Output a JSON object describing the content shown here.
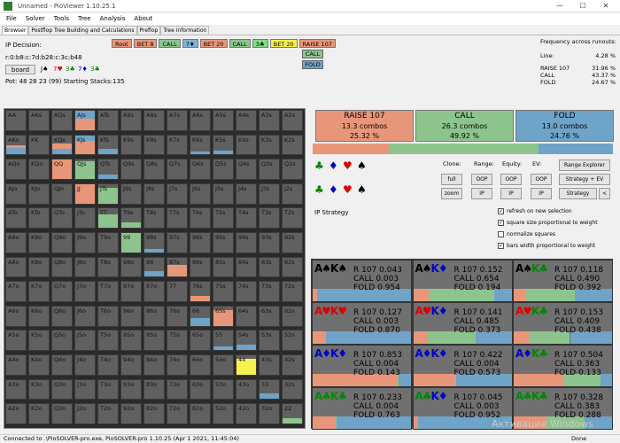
{
  "window": {
    "title": "Unnamed - PioViewer 1.10.25.1",
    "minimize": "—",
    "maximize": "☐",
    "close": "✕"
  },
  "menu": [
    "File",
    "Solver",
    "Tools",
    "Tree",
    "Analysis",
    "About"
  ],
  "tabs": [
    "Browser",
    "Postflop Tree Building and Calculations",
    "Preflop",
    "Tree information"
  ],
  "left_panel": {
    "ip_decision": "IP Decision:",
    "board_text": "r:0:b8:c:7d:b28:c:3c:b48",
    "board_button": "board",
    "board_cards": [
      {
        "t": "J♠",
        "c": "#000"
      },
      {
        "t": "7♥",
        "c": "#d00"
      },
      {
        "t": "3♣",
        "c": "#080"
      },
      {
        "t": "7♦",
        "c": "#00c"
      },
      {
        "t": "3♣",
        "c": "#080"
      }
    ],
    "pot": "Pot: 48 28 23 (99) Starting Stacks:135"
  },
  "breadcrumbs": [
    {
      "t": "Root",
      "c": "#e8967a"
    },
    {
      "t": "BET 8",
      "c": "#e8967a"
    },
    {
      "t": "CALL",
      "c": "#8dc48d"
    },
    {
      "t": "7♦",
      "c": "#7fb3d5"
    },
    {
      "t": "BET 20",
      "c": "#e8967a"
    },
    {
      "t": "CALL",
      "c": "#8dc48d"
    },
    {
      "t": "3♣",
      "c": "#7fe07f"
    },
    {
      "t": "BET 20",
      "c": "#f5f250"
    },
    {
      "t": "RAISE 107",
      "c": "#e8967a"
    }
  ],
  "options": {
    "call": "CALL",
    "fold": "FOLD"
  },
  "frequency": {
    "title": "Frequency across runouts:",
    "line_label": "Line:",
    "line_value": "4.28 %",
    "rows": [
      {
        "l": "RAISE 107",
        "v": "31.96 %"
      },
      {
        "l": "CALL",
        "v": "43.37 %"
      },
      {
        "l": "FOLD",
        "v": "24.67 %"
      }
    ]
  },
  "grid": [
    [
      "AA",
      "AKs",
      "AQs",
      "AJs",
      "ATs",
      "A9s",
      "A8s",
      "A7s",
      "A6s",
      "A5s",
      "A4s",
      "A3s",
      "A2s"
    ],
    [
      "AKo",
      "KK",
      "KQs",
      "KJs",
      "KTs",
      "K9s",
      "K8s",
      "K7s",
      "K6s",
      "K5s",
      "K4s",
      "K3s",
      "K2s"
    ],
    [
      "AQo",
      "KQo",
      "QQ",
      "QJs",
      "QTs",
      "Q9s",
      "Q8s",
      "Q7s",
      "Q6s",
      "Q5s",
      "Q4s",
      "Q3s",
      "Q2s"
    ],
    [
      "AJo",
      "KJo",
      "QJo",
      "JJ",
      "JTs",
      "J9s",
      "J8s",
      "J7s",
      "J6s",
      "J5s",
      "J4s",
      "J3s",
      "J2s"
    ],
    [
      "ATo",
      "KTo",
      "QTo",
      "JTo",
      "TT",
      "T9s",
      "T8s",
      "T7s",
      "T6s",
      "T5s",
      "T4s",
      "T3s",
      "T2s"
    ],
    [
      "A9o",
      "K9o",
      "Q9o",
      "J9o",
      "T9o",
      "99",
      "98s",
      "97s",
      "96s",
      "95s",
      "94s",
      "93s",
      "92s"
    ],
    [
      "A8o",
      "K8o",
      "Q8o",
      "J8o",
      "T8o",
      "98o",
      "88",
      "87s",
      "86s",
      "85s",
      "84s",
      "83s",
      "82s"
    ],
    [
      "A7o",
      "K7o",
      "Q7o",
      "J7o",
      "T7o",
      "97o",
      "87o",
      "77",
      "76s",
      "75s",
      "74s",
      "73s",
      "72s"
    ],
    [
      "A6o",
      "K6o",
      "Q6o",
      "J6o",
      "T6o",
      "96o",
      "86o",
      "76o",
      "66",
      "65s",
      "64s",
      "63s",
      "62s"
    ],
    [
      "A5o",
      "K5o",
      "Q5o",
      "J5o",
      "T5o",
      "95o",
      "85o",
      "75o",
      "65o",
      "55",
      "54s",
      "53s",
      "52s"
    ],
    [
      "A4o",
      "K4o",
      "Q4o",
      "J4o",
      "T4o",
      "94o",
      "84o",
      "74o",
      "64o",
      "54o",
      "44",
      "43s",
      "42s"
    ],
    [
      "A3o",
      "K3o",
      "Q3o",
      "J3o",
      "T3o",
      "93o",
      "83o",
      "73o",
      "63o",
      "53o",
      "43o",
      "33",
      "32s"
    ],
    [
      "A2o",
      "K2o",
      "Q2o",
      "J2o",
      "T2o",
      "92o",
      "82o",
      "72o",
      "62o",
      "52o",
      "42o",
      "32o",
      "22"
    ]
  ],
  "actions": [
    {
      "name": "RAISE 107",
      "combos": "13.3 combos",
      "pct": "25.32 %",
      "color": "#e8967a",
      "frac": 0.2532
    },
    {
      "name": "CALL",
      "combos": "26.3 combos",
      "pct": "49.92 %",
      "color": "#8dc48d",
      "frac": 0.4992
    },
    {
      "name": "FOLD",
      "combos": "13.0 combos",
      "pct": "24.76 %",
      "color": "#6fa3c8",
      "frac": 0.2476
    }
  ],
  "controls": {
    "clone": "Clone:",
    "range": "Range:",
    "equity": "Equity:",
    "ev": "EV:",
    "full": "full",
    "zoom": "zoom",
    "oop1": "OOP",
    "ip1": "IP",
    "oop2": "OOP",
    "ip2": "IP",
    "oop3": "OOP",
    "ip3": "IP",
    "range_explorer": "Range Explorer",
    "strategy_ev": "Strategy + EV",
    "strategy": "Strategy",
    "back": "<",
    "ip_strategy": "IP Strategy",
    "suits_top": [
      {
        "s": "♣",
        "c": "#080"
      },
      {
        "s": "♦",
        "c": "#00c"
      },
      {
        "s": "♥",
        "c": "#d00"
      },
      {
        "s": "♠",
        "c": "#000"
      }
    ],
    "suits_bottom": [
      {
        "s": "♣",
        "c": "#080"
      },
      {
        "s": "♦",
        "c": "#00c"
      },
      {
        "s": "♥",
        "c": "#d00"
      },
      {
        "s": "♠",
        "c": "#000"
      }
    ],
    "checks": [
      {
        "l": "refresh on new selection",
        "on": true
      },
      {
        "l": "square size proportional to weight",
        "on": true
      },
      {
        "l": "normalize squares",
        "on": false
      },
      {
        "l": "bars width proportional to weight",
        "on": true
      }
    ]
  },
  "combos": [
    {
      "c1": "A♠",
      "c1c": "#000",
      "c2": "K♠",
      "c2c": "#000",
      "r": "0.043",
      "call": "0.003",
      "fold": "0.954"
    },
    {
      "c1": "A♠",
      "c1c": "#000",
      "c2": "K♦",
      "c2c": "#00c",
      "r": "0.152",
      "call": "0.654",
      "fold": "0.194"
    },
    {
      "c1": "A♠",
      "c1c": "#000",
      "c2": "K♣",
      "c2c": "#080",
      "r": "0.118",
      "call": "0.490",
      "fold": "0.392"
    },
    {
      "c1": "A♥",
      "c1c": "#d00",
      "c2": "K♥",
      "c2c": "#d00",
      "r": "0.127",
      "call": "0.003",
      "fold": "0.870"
    },
    {
      "c1": "A♥",
      "c1c": "#d00",
      "c2": "K♦",
      "c2c": "#00c",
      "r": "0.141",
      "call": "0.485",
      "fold": "0.373"
    },
    {
      "c1": "A♥",
      "c1c": "#d00",
      "c2": "K♣",
      "c2c": "#080",
      "r": "0.153",
      "call": "0.409",
      "fold": "0.438"
    },
    {
      "c1": "A♦",
      "c1c": "#00c",
      "c2": "K♦",
      "c2c": "#00c",
      "r": "0.853",
      "call": "0.004",
      "fold": "0.143"
    },
    {
      "c1": "A♦",
      "c1c": "#00c",
      "c2": "K♦",
      "c2c": "#00c",
      "r": "0.422",
      "call": "0.004",
      "fold": "0.573"
    },
    {
      "c1": "A♦",
      "c1c": "#00c",
      "c2": "K♣",
      "c2c": "#080",
      "r": "0.504",
      "call": "0.363",
      "fold": "0.133"
    },
    {
      "c1": "A♣",
      "c1c": "#080",
      "c2": "K♣",
      "c2c": "#080",
      "r": "0.233",
      "call": "0.004",
      "fold": "0.763"
    },
    {
      "c1": "A♣",
      "c1c": "#080",
      "c2": "K♦",
      "c2c": "#00c",
      "r": "0.045",
      "call": "0.003",
      "fold": "0.952"
    },
    {
      "c1": "A♣",
      "c1c": "#080",
      "c2": "K♣",
      "c2c": "#080",
      "r": "0.328",
      "call": "0.383",
      "fold": "0.288"
    }
  ],
  "combo_labels": {
    "r": "R 107",
    "call": "CALL",
    "fold": "FOLD"
  },
  "status": {
    "text": "Connected to .\\PioSOLVER-pro.exe, PioSOLVER-pro 1.10.25 (Apr 1 2021, 11:45:04)",
    "done": "Done",
    "watermark": "Активация Windows"
  },
  "colors": {
    "raise": "#e8967a",
    "call": "#8dc48d",
    "fold": "#6fa3c8",
    "yellow": "#f5f250"
  }
}
